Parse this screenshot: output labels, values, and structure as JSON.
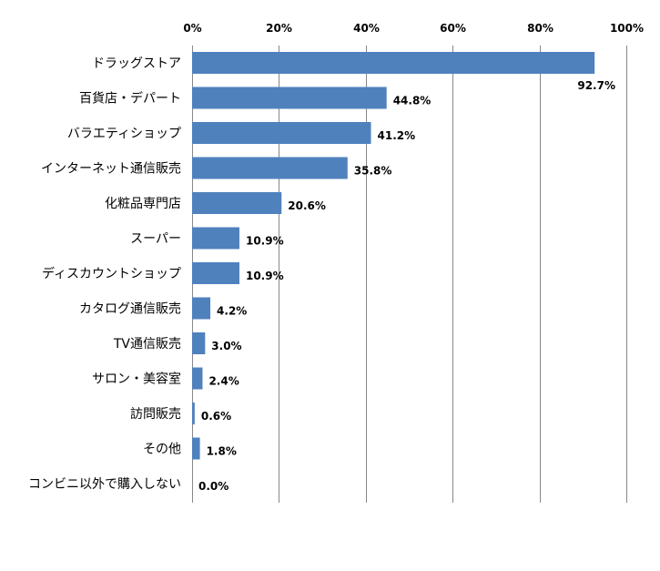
{
  "chart_data": {
    "type": "bar",
    "orientation": "horizontal",
    "categories": [
      "ドラッグストア",
      "百貨店・デパート",
      "バラエティショップ",
      "インターネット通信販売",
      "化粧品専門店",
      "スーパー",
      "ディスカウントショップ",
      "カタログ通信販売",
      "TV通信販売",
      "サロン・美容室",
      "訪問販売",
      "その他",
      "コンビニ以外で購入しない"
    ],
    "values": [
      92.7,
      44.8,
      41.2,
      35.8,
      20.6,
      10.9,
      10.9,
      4.2,
      3.0,
      2.4,
      0.6,
      1.8,
      0.0
    ],
    "value_labels": [
      "92.7%",
      "44.8%",
      "41.2%",
      "35.8%",
      "20.6%",
      "10.9%",
      "10.9%",
      "4.2%",
      "3.0%",
      "2.4%",
      "0.6%",
      "1.8%",
      "0.0%"
    ],
    "x_ticks": [
      0,
      20,
      40,
      60,
      80,
      100
    ],
    "x_tick_labels": [
      "0%",
      "20%",
      "40%",
      "60%",
      "80%",
      "100%"
    ],
    "xlim": [
      0,
      100
    ],
    "x_axis_position": "top",
    "grid": true,
    "legend": "none",
    "bar_color": "#4F81BD",
    "title": "",
    "xlabel": "",
    "ylabel": ""
  }
}
